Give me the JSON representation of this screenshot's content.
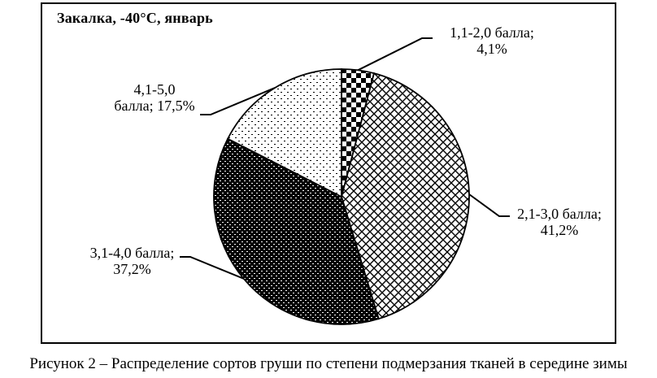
{
  "colors": {
    "foreground": "#000000",
    "background": "#ffffff"
  },
  "chart_data": {
    "type": "pie",
    "title": "Закалка, -40°С, январь",
    "caption": "Рисунок 2 – Распределение сортов груши по степени подмерзания тканей в середине зимы",
    "start_angle_deg": 0,
    "direction": "clockwise",
    "total": 100,
    "legend_position": "callout-labels",
    "categories": [
      "1,1-2,0 балла",
      "2,1-3,0 балла",
      "3,1-4,0 балла",
      "4,1-5,0 балла"
    ],
    "values": [
      4.1,
      41.2,
      37.2,
      17.5
    ],
    "slices": [
      {
        "category": "1,1-2,0 балла",
        "value": 4.1,
        "pattern": "checkerboard",
        "callout_line1": "1,1-2,0 балла;",
        "callout_line2": "4,1%"
      },
      {
        "category": "2,1-3,0 балла",
        "value": 41.2,
        "pattern": "diamond-lattice",
        "callout_line1": "2,1-3,0 балла;",
        "callout_line2": "41,2%"
      },
      {
        "category": "3,1-4,0 балла",
        "value": 37.2,
        "pattern": "black-dots",
        "callout_line1": "3,1-4,0 балла;",
        "callout_line2": "37,2%"
      },
      {
        "category": "4,1-5,0 балла",
        "value": 17.5,
        "pattern": "sparse-dots",
        "callout_line1": "4,1-5,0",
        "callout_line2": "балла; 17,5%"
      }
    ]
  }
}
